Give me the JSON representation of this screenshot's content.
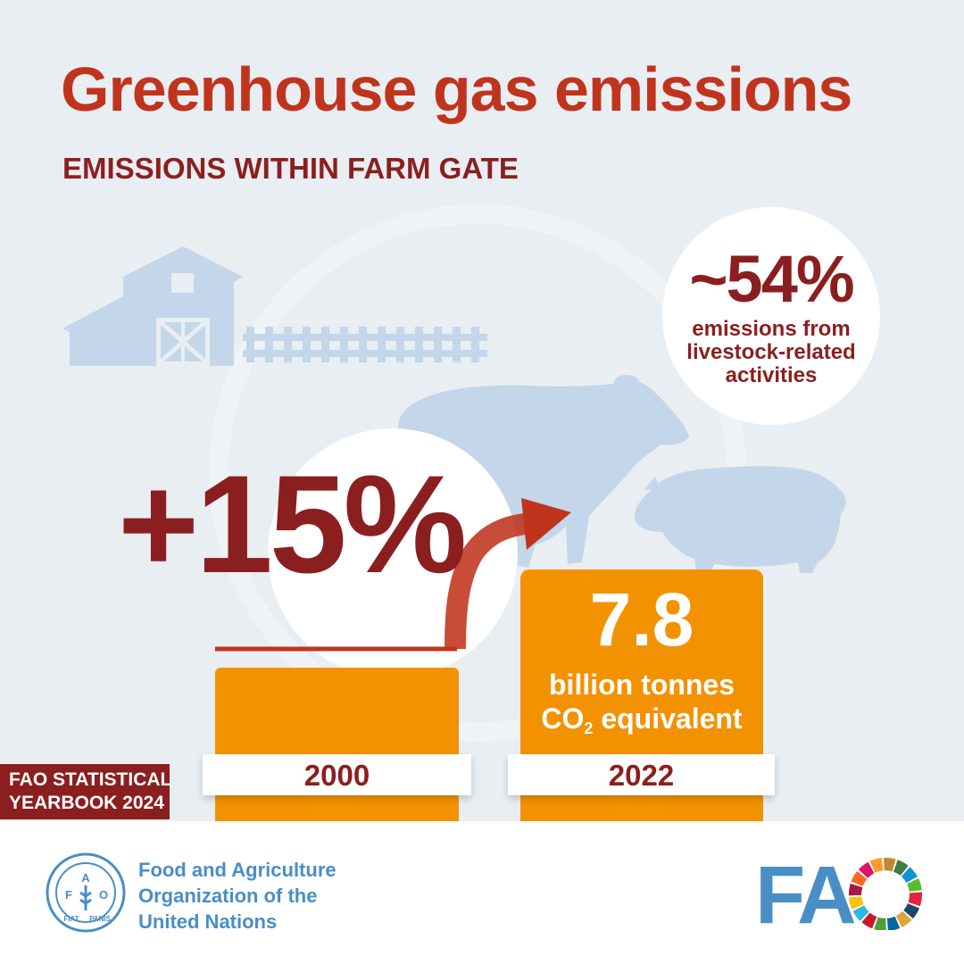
{
  "header": {
    "title": "Greenhouse gas emissions",
    "subtitle": "EMISSIONS WITHIN FARM GATE"
  },
  "livestock_stat": {
    "value": "~54%",
    "description": "emissions from livestock-related activities"
  },
  "growth": {
    "value": "+15%"
  },
  "bars": {
    "left_year": "2000",
    "right_year": "2022",
    "right_value": "7.8",
    "unit_line1": "billion tonnes",
    "unit_line2_prefix": "CO",
    "unit_line2_sub": "2",
    "unit_line2_suffix": " equivalent"
  },
  "badge": {
    "line1": "FAO STATISTICAL",
    "line2": "YEARBOOK 2024"
  },
  "footer": {
    "org_line1": "Food and Agriculture",
    "org_line2": "Organization of the",
    "org_line3": "United Nations",
    "emblem_letters": "F A O",
    "emblem_motto": "FIAT PANIS",
    "logo_text": "FAO"
  },
  "colors": {
    "title_red": "#c0341d",
    "dark_red": "#8b1f1f",
    "orange": "#f39200",
    "background": "#e9eef2",
    "silhouette_blue": "#c3d6ea",
    "fao_blue": "#4a8ec6"
  },
  "icons": [
    "barn-icon",
    "fence-icon",
    "cow-icon",
    "pig-icon",
    "growth-arrow-icon",
    "fao-emblem-icon",
    "sdg-wheel-icon"
  ]
}
